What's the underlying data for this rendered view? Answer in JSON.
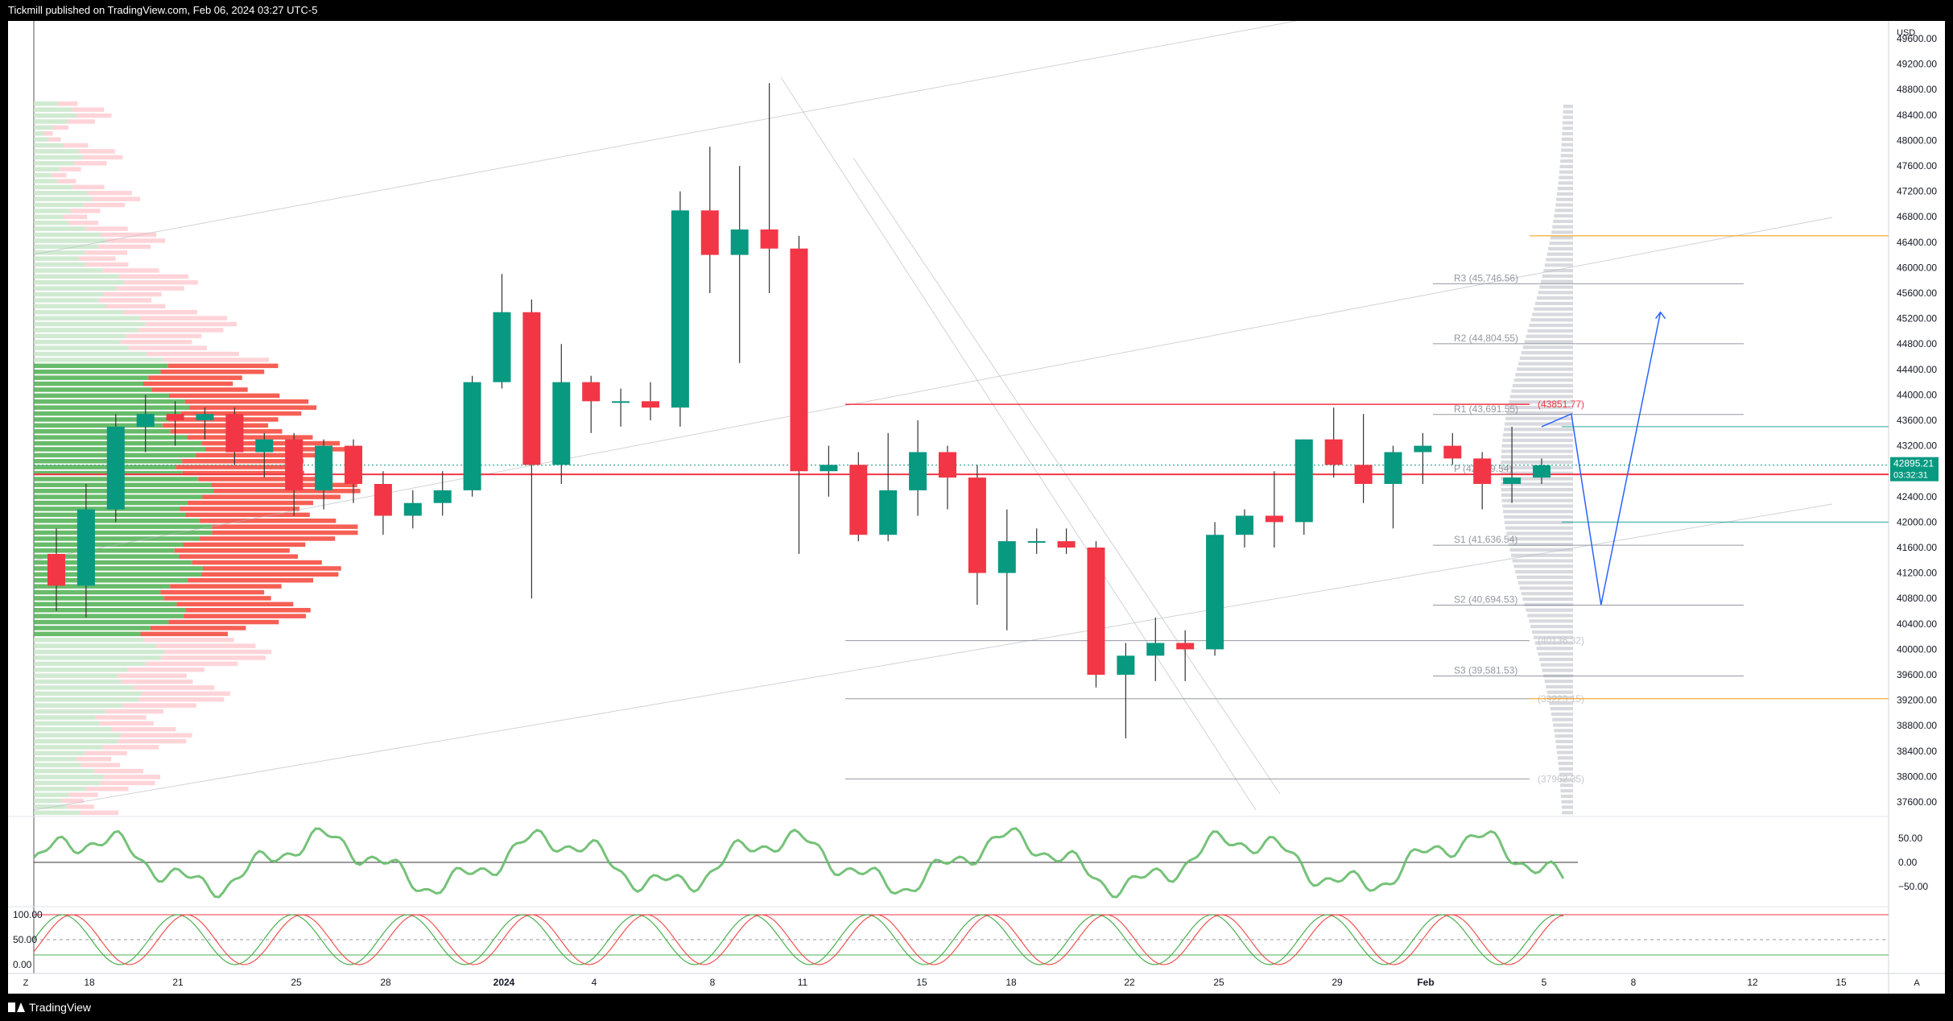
{
  "header": {
    "publish_text": "Tickmill published on TradingView.com, Feb 06, 2024 03:27 UTC-5"
  },
  "footer": {
    "brand": "TradingView"
  },
  "axis": {
    "currency": "USD",
    "zoom_left": "Z",
    "auto_right": "A",
    "price_ticks": [
      "49600.00",
      "49200.00",
      "48800.00",
      "48400.00",
      "48000.00",
      "47600.00",
      "47200.00",
      "46800.00",
      "46400.00",
      "46000.00",
      "45600.00",
      "45200.00",
      "44800.00",
      "44400.00",
      "44000.00",
      "43600.00",
      "43200.00",
      "42800.00",
      "42400.00",
      "42000.00",
      "41600.00",
      "41200.00",
      "40800.00",
      "40400.00",
      "40000.00",
      "39600.00",
      "39200.00",
      "38800.00",
      "38400.00",
      "38000.00",
      "37600.00"
    ],
    "date_labels": [
      "18",
      "21",
      "25",
      "28",
      "2024",
      "4",
      "8",
      "11",
      "15",
      "18",
      "22",
      "25",
      "29",
      "Feb",
      "5",
      "8",
      "12",
      "15"
    ],
    "osc1_ticks": [
      "50.00",
      "0.00",
      "−50.00"
    ],
    "osc2_ticks": [
      "100.00",
      "50.00",
      "0.00"
    ]
  },
  "last_price": {
    "value": "42895.21",
    "countdown": "03:32:31",
    "color": "#089981"
  },
  "colors": {
    "up": "#089981",
    "down": "#f23645",
    "trend": "#b2b5be",
    "projection": "#2962ff"
  },
  "pivots": [
    {
      "label": "R3 (45,746.56)",
      "price": 45746.56
    },
    {
      "label": "R2 (44,804.55)",
      "price": 44804.55
    },
    {
      "label": "R1 (43,691.55)",
      "price": 43691.55
    },
    {
      "label": "P (42,749.54)",
      "price": 42749.54
    },
    {
      "label": "S1 (41,636.54)",
      "price": 41636.54
    },
    {
      "label": "S2 (40,694.53)",
      "price": 40694.53
    },
    {
      "label": "S3 (39,581.53)",
      "price": 39581.53
    }
  ],
  "levels": [
    {
      "label": "(43851.77)",
      "price": 43851.77
    },
    {
      "label": "(40136.32)",
      "price": 40136.32
    },
    {
      "label": "(39223.15)",
      "price": 39223.15
    },
    {
      "label": "(37962.35)",
      "price": 37962.35
    }
  ],
  "chart_data": {
    "type": "candlestick",
    "x_unit": "date",
    "ylim": [
      37600,
      49600
    ],
    "candles": [
      {
        "date": "2023-12-18",
        "open": 41500,
        "high": 41900,
        "low": 40600,
        "close": 41000
      },
      {
        "date": "2023-12-19",
        "open": 41000,
        "high": 42600,
        "low": 40500,
        "close": 42200
      },
      {
        "date": "2023-12-20",
        "open": 42200,
        "high": 43700,
        "low": 42000,
        "close": 43500
      },
      {
        "date": "2023-12-21",
        "open": 43500,
        "high": 44000,
        "low": 43100,
        "close": 43700
      },
      {
        "date": "2023-12-22",
        "open": 43700,
        "high": 43900,
        "low": 43200,
        "close": 43600
      },
      {
        "date": "2023-12-23",
        "open": 43600,
        "high": 43800,
        "low": 43300,
        "close": 43700
      },
      {
        "date": "2023-12-24",
        "open": 43700,
        "high": 43800,
        "low": 42900,
        "close": 43100
      },
      {
        "date": "2023-12-25",
        "open": 43100,
        "high": 43400,
        "low": 42700,
        "close": 43300
      },
      {
        "date": "2023-12-26",
        "open": 43300,
        "high": 43400,
        "low": 42100,
        "close": 42500
      },
      {
        "date": "2023-12-27",
        "open": 42500,
        "high": 43300,
        "low": 42200,
        "close": 43200
      },
      {
        "date": "2023-12-28",
        "open": 43200,
        "high": 43300,
        "low": 42300,
        "close": 42600
      },
      {
        "date": "2023-12-29",
        "open": 42600,
        "high": 42800,
        "low": 41800,
        "close": 42100
      },
      {
        "date": "2023-12-30",
        "open": 42100,
        "high": 42500,
        "low": 41900,
        "close": 42300
      },
      {
        "date": "2023-12-31",
        "open": 42300,
        "high": 42800,
        "low": 42100,
        "close": 42500
      },
      {
        "date": "2024-01-01",
        "open": 42500,
        "high": 44300,
        "low": 42400,
        "close": 44200
      },
      {
        "date": "2024-01-02",
        "open": 44200,
        "high": 45900,
        "low": 44100,
        "close": 45300
      },
      {
        "date": "2024-01-03",
        "open": 45300,
        "high": 45500,
        "low": 40800,
        "close": 42900
      },
      {
        "date": "2024-01-04",
        "open": 42900,
        "high": 44800,
        "low": 42600,
        "close": 44200
      },
      {
        "date": "2024-01-05",
        "open": 44200,
        "high": 44300,
        "low": 43400,
        "close": 43900
      },
      {
        "date": "2024-01-06",
        "open": 43900,
        "high": 44100,
        "low": 43500,
        "close": 43900
      },
      {
        "date": "2024-01-07",
        "open": 43900,
        "high": 44200,
        "low": 43600,
        "close": 43800
      },
      {
        "date": "2024-01-08",
        "open": 43800,
        "high": 47200,
        "low": 43500,
        "close": 46900
      },
      {
        "date": "2024-01-09",
        "open": 46900,
        "high": 47900,
        "low": 45600,
        "close": 46200
      },
      {
        "date": "2024-01-10",
        "open": 46200,
        "high": 47600,
        "low": 44500,
        "close": 46600
      },
      {
        "date": "2024-01-11",
        "open": 46600,
        "high": 48900,
        "low": 45600,
        "close": 46300
      },
      {
        "date": "2024-01-12",
        "open": 46300,
        "high": 46500,
        "low": 41500,
        "close": 42800
      },
      {
        "date": "2024-01-13",
        "open": 42800,
        "high": 43200,
        "low": 42400,
        "close": 42900
      },
      {
        "date": "2024-01-14",
        "open": 42900,
        "high": 43100,
        "low": 41700,
        "close": 41800
      },
      {
        "date": "2024-01-15",
        "open": 41800,
        "high": 43400,
        "low": 41700,
        "close": 42500
      },
      {
        "date": "2024-01-16",
        "open": 42500,
        "high": 43600,
        "low": 42100,
        "close": 43100
      },
      {
        "date": "2024-01-17",
        "open": 43100,
        "high": 43200,
        "low": 42200,
        "close": 42700
      },
      {
        "date": "2024-01-18",
        "open": 42700,
        "high": 42900,
        "low": 40700,
        "close": 41200
      },
      {
        "date": "2024-01-19",
        "open": 41200,
        "high": 42200,
        "low": 40300,
        "close": 41700
      },
      {
        "date": "2024-01-20",
        "open": 41700,
        "high": 41900,
        "low": 41500,
        "close": 41700
      },
      {
        "date": "2024-01-21",
        "open": 41700,
        "high": 41900,
        "low": 41500,
        "close": 41600
      },
      {
        "date": "2024-01-22",
        "open": 41600,
        "high": 41700,
        "low": 39400,
        "close": 39600
      },
      {
        "date": "2024-01-23",
        "open": 39600,
        "high": 40100,
        "low": 38600,
        "close": 39900
      },
      {
        "date": "2024-01-24",
        "open": 39900,
        "high": 40500,
        "low": 39500,
        "close": 40100
      },
      {
        "date": "2024-01-25",
        "open": 40100,
        "high": 40300,
        "low": 39500,
        "close": 40000
      },
      {
        "date": "2024-01-26",
        "open": 40000,
        "high": 42000,
        "low": 39900,
        "close": 41800
      },
      {
        "date": "2024-01-27",
        "open": 41800,
        "high": 42200,
        "low": 41600,
        "close": 42100
      },
      {
        "date": "2024-01-28",
        "open": 42100,
        "high": 42800,
        "low": 41600,
        "close": 42000
      },
      {
        "date": "2024-01-29",
        "open": 42000,
        "high": 43300,
        "low": 41800,
        "close": 43300
      },
      {
        "date": "2024-01-30",
        "open": 43300,
        "high": 43800,
        "low": 42700,
        "close": 42900
      },
      {
        "date": "2024-01-31",
        "open": 42900,
        "high": 43700,
        "low": 42300,
        "close": 42600
      },
      {
        "date": "2024-02-01",
        "open": 42600,
        "high": 43200,
        "low": 41900,
        "close": 43100
      },
      {
        "date": "2024-02-02",
        "open": 43100,
        "high": 43400,
        "low": 42600,
        "close": 43200
      },
      {
        "date": "2024-02-03",
        "open": 43200,
        "high": 43400,
        "low": 42900,
        "close": 43000
      },
      {
        "date": "2024-02-04",
        "open": 43000,
        "high": 43100,
        "low": 42200,
        "close": 42600
      },
      {
        "date": "2024-02-05",
        "open": 42600,
        "high": 43500,
        "low": 42300,
        "close": 42700
      },
      {
        "date": "2024-02-06",
        "open": 42700,
        "high": 43000,
        "low": 42600,
        "close": 42895
      }
    ],
    "projection_path": [
      {
        "date": "2024-02-06",
        "price": 43500
      },
      {
        "date": "2024-02-07",
        "price": 43700
      },
      {
        "date": "2024-02-08",
        "price": 40700
      },
      {
        "date": "2024-02-10",
        "price": 45300
      }
    ]
  }
}
